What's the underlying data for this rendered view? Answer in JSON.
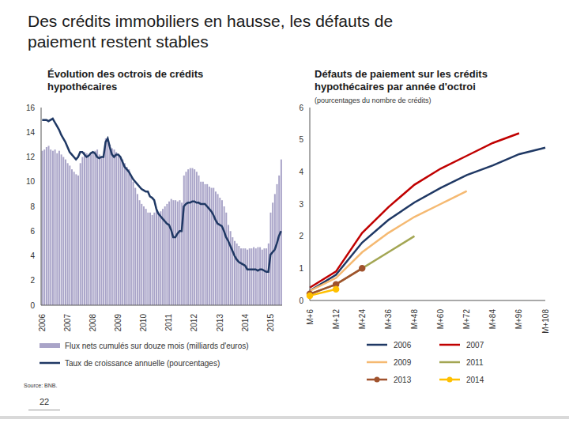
{
  "title": "Des crédits immobiliers en hausse, les défauts de paiement restent stables",
  "source": "Source: BNB.",
  "page": "22",
  "chart_data": [
    {
      "type": "bar",
      "title": "Évolution des octrois de crédits hypothécaires",
      "legend": "bottom",
      "ylim": [
        0,
        16
      ],
      "yticks": [
        0,
        2,
        4,
        6,
        8,
        10,
        12,
        14,
        16
      ],
      "categories": [
        "2006",
        null,
        null,
        null,
        null,
        null,
        null,
        null,
        null,
        null,
        null,
        null,
        "2007",
        null,
        null,
        null,
        null,
        null,
        null,
        null,
        null,
        null,
        null,
        null,
        "2008",
        null,
        null,
        null,
        null,
        null,
        null,
        null,
        null,
        null,
        null,
        null,
        "2009",
        null,
        null,
        null,
        null,
        null,
        null,
        null,
        null,
        null,
        null,
        null,
        "2010",
        null,
        null,
        null,
        null,
        null,
        null,
        null,
        null,
        null,
        null,
        null,
        "2011",
        null,
        null,
        null,
        null,
        null,
        null,
        null,
        null,
        null,
        null,
        null,
        "2012",
        null,
        null,
        null,
        null,
        null,
        null,
        null,
        null,
        null,
        null,
        null,
        "2013",
        null,
        null,
        null,
        null,
        null,
        null,
        null,
        null,
        null,
        null,
        null,
        "2014",
        null,
        null,
        null,
        null,
        null,
        null,
        null,
        null,
        null,
        null,
        null,
        "2015",
        null,
        null,
        null,
        null,
        null
      ],
      "series": [
        {
          "name": "Flux nets cumulés sur douze mois (milliards d'euros)",
          "type": "bar",
          "color": "#a9a4c8",
          "values": [
            12.5,
            12.6,
            12.8,
            12.9,
            12.6,
            12.5,
            12.6,
            12.3,
            12.5,
            12.2,
            12.0,
            11.8,
            11.5,
            11.3,
            11.0,
            10.8,
            10.6,
            10.5,
            11.5,
            12.0,
            12.4,
            12.3,
            12.0,
            12.2,
            12.4,
            12.5,
            12.6,
            12.2,
            12.0,
            12.1,
            13.5,
            13.4,
            13.0,
            12.7,
            12.6,
            12.4,
            12.2,
            12.0,
            11.8,
            11.5,
            11.2,
            11.0,
            10.5,
            10.0,
            9.5,
            9.0,
            8.5,
            8.2,
            8.0,
            7.8,
            7.5,
            7.5,
            7.3,
            7.5,
            7.8,
            7.5,
            7.6,
            7.8,
            8.0,
            8.2,
            8.4,
            8.6,
            8.5,
            8.5,
            8.4,
            8.5,
            8.3,
            10.5,
            10.8,
            11.0,
            11.1,
            11.1,
            11.0,
            10.8,
            10.5,
            10.0,
            10.0,
            9.8,
            9.8,
            9.6,
            9.5,
            9.5,
            9.2,
            9.0,
            8.7,
            8.5,
            8.0,
            7.5,
            6.5,
            6.0,
            5.5,
            5.2,
            5.0,
            4.8,
            4.6,
            4.6,
            4.6,
            4.5,
            4.6,
            4.6,
            4.7,
            4.6,
            4.7,
            4.7,
            4.5,
            4.6,
            4.6,
            5.0,
            7.5,
            8.3,
            9.0,
            9.8,
            10.5,
            11.8
          ]
        },
        {
          "name": "Taux de croissance annuelle (pourcentages)",
          "type": "line",
          "color": "#1f3864",
          "values": [
            15.0,
            15.0,
            15.0,
            14.9,
            15.0,
            15.1,
            14.8,
            14.5,
            14.2,
            13.8,
            13.5,
            13.2,
            12.8,
            12.4,
            12.2,
            12.0,
            11.8,
            12.0,
            12.4,
            12.4,
            12.2,
            12.0,
            12.1,
            12.3,
            12.4,
            12.3,
            12.0,
            11.9,
            12.0,
            12.0,
            13.2,
            13.5,
            12.8,
            12.2,
            12.0,
            12.2,
            12.2,
            12.0,
            11.6,
            11.2,
            11.0,
            10.8,
            10.5,
            10.2,
            10.0,
            9.8,
            9.6,
            9.4,
            9.3,
            9.2,
            9.2,
            8.8,
            8.7,
            8.5,
            7.8,
            7.4,
            7.2,
            7.0,
            6.8,
            6.6,
            6.5,
            6.1,
            5.5,
            5.5,
            5.8,
            6.0,
            6.0,
            8.0,
            8.2,
            8.3,
            8.3,
            8.4,
            8.4,
            8.3,
            8.3,
            8.2,
            8.2,
            8.2,
            8.0,
            7.8,
            7.6,
            7.3,
            6.9,
            6.6,
            6.5,
            6.4,
            6.0,
            5.5,
            5.2,
            4.8,
            4.4,
            4.0,
            3.7,
            3.5,
            3.4,
            3.3,
            3.2,
            2.9,
            2.9,
            2.9,
            2.9,
            2.9,
            2.8,
            2.9,
            2.9,
            2.8,
            2.7,
            2.7,
            4.1,
            4.3,
            4.5,
            5.0,
            5.6,
            6.0
          ]
        }
      ]
    },
    {
      "type": "line",
      "title": "Défauts de paiement sur les crédits hypothécaires par année d'octroi",
      "subtitle": "(pourcentages du nombre de crédits)",
      "legend": "bottom",
      "ylim": [
        0,
        6
      ],
      "yticks": [
        0,
        1,
        2,
        3,
        4,
        5,
        6
      ],
      "categories": [
        "M+6",
        "M+12",
        "M+24",
        "M+36",
        "M+48",
        "M+60",
        "M+72",
        "M+84",
        "M+96",
        "M+108"
      ],
      "series": [
        {
          "name": "2006",
          "color": "#1f3864",
          "values": [
            0.3,
            0.8,
            1.8,
            2.5,
            3.05,
            3.5,
            3.9,
            4.2,
            4.55,
            4.75
          ]
        },
        {
          "name": "2007",
          "color": "#c00000",
          "values": [
            0.4,
            0.9,
            2.1,
            2.9,
            3.6,
            4.1,
            4.5,
            4.9,
            5.2,
            null
          ]
        },
        {
          "name": "2009",
          "color": "#f5b971",
          "values": [
            0.3,
            0.7,
            1.5,
            2.1,
            2.6,
            3.0,
            3.4,
            null,
            null,
            null
          ]
        },
        {
          "name": "2011",
          "color": "#a3a653",
          "values": [
            0.2,
            0.5,
            1.0,
            1.5,
            2.0,
            null,
            null,
            null,
            null,
            null
          ]
        },
        {
          "name": "2013",
          "color": "#a0522d",
          "marker": "circle",
          "values": [
            0.2,
            0.5,
            1.0,
            null,
            null,
            null,
            null,
            null,
            null,
            null
          ]
        },
        {
          "name": "2014",
          "color": "#ffc000",
          "marker": "circle",
          "values": [
            0.15,
            0.35,
            null,
            null,
            null,
            null,
            null,
            null,
            null,
            null
          ]
        }
      ]
    }
  ]
}
